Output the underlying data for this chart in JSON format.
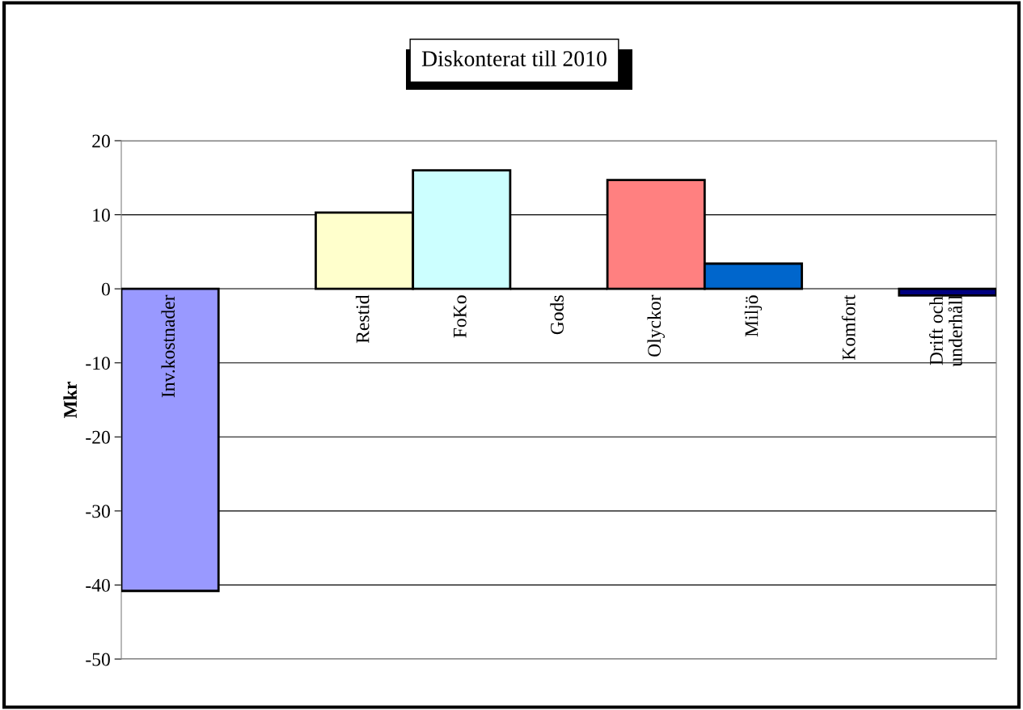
{
  "chart_data": {
    "type": "bar",
    "title": "Diskonterat till 2010",
    "ylabel": "Mkr",
    "categories": [
      "Inv.kostnader",
      null,
      "Restid",
      "FoKo",
      "Gods",
      "Olyckor",
      "Miljö",
      "Komfort",
      "Drift och\nunderhåll"
    ],
    "values": [
      -40.8,
      null,
      10.3,
      16.0,
      0,
      14.7,
      3.4,
      null,
      -0.9
    ],
    "colors": [
      "#9999ff",
      "#ffffff",
      "#ffffcc",
      "#ccffff",
      "#000000",
      "#ff8080",
      "#0066cc",
      "#ffffff",
      "#000080"
    ],
    "ylim": [
      -50,
      20
    ],
    "yticks": [
      -50,
      -40,
      -30,
      -20,
      -10,
      0,
      10,
      20
    ],
    "grid": "y"
  }
}
